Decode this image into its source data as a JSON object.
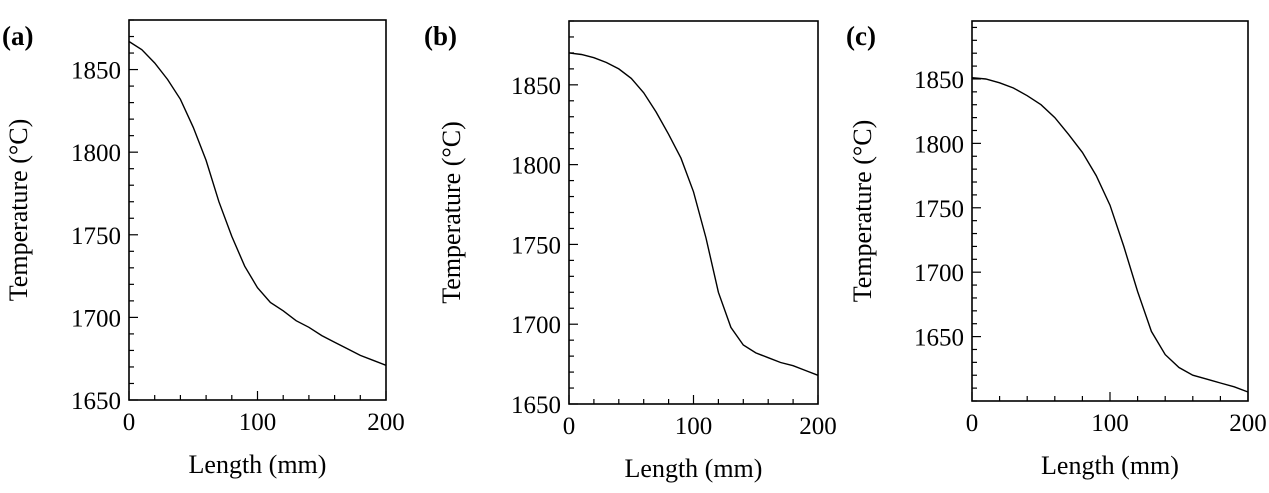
{
  "chart_data": [
    {
      "panel": "(a)",
      "type": "line",
      "xlabel": "Length (mm)",
      "ylabel": "Temperature (°C)",
      "xlim": [
        0,
        200
      ],
      "ylim": [
        1650,
        1880
      ],
      "xticks": [
        0,
        100,
        200
      ],
      "yticks": [
        1650,
        1700,
        1750,
        1800,
        1850
      ],
      "grid": false,
      "series": [
        {
          "x": [
            0,
            10,
            20,
            30,
            40,
            50,
            60,
            70,
            80,
            90,
            100,
            110,
            120,
            130,
            140,
            150,
            160,
            170,
            180,
            190,
            200
          ],
          "y": [
            1867,
            1862,
            1854,
            1844,
            1832,
            1815,
            1795,
            1770,
            1749,
            1731,
            1718,
            1709,
            1704,
            1698,
            1694,
            1689,
            1685,
            1681,
            1677,
            1674,
            1671
          ]
        }
      ]
    },
    {
      "panel": "(b)",
      "type": "line",
      "xlabel": "Length (mm)",
      "ylabel": "Temperature (°C)",
      "xlim": [
        0,
        200
      ],
      "ylim": [
        1650,
        1890
      ],
      "xticks": [
        0,
        100,
        200
      ],
      "yticks": [
        1650,
        1700,
        1750,
        1800,
        1850
      ],
      "grid": false,
      "series": [
        {
          "x": [
            0,
            10,
            20,
            30,
            40,
            50,
            60,
            70,
            80,
            90,
            100,
            110,
            120,
            130,
            140,
            150,
            160,
            170,
            180,
            190,
            200
          ],
          "y": [
            1870,
            1869,
            1867,
            1864,
            1860,
            1854,
            1845,
            1833,
            1819,
            1804,
            1783,
            1754,
            1720,
            1698,
            1687,
            1682,
            1679,
            1676,
            1674,
            1671,
            1668
          ]
        }
      ]
    },
    {
      "panel": "(c)",
      "type": "line",
      "xlabel": "Length (mm)",
      "ylabel": "Temperature (°C)",
      "xlim": [
        0,
        200
      ],
      "ylim": [
        1600,
        1895
      ],
      "xticks": [
        0,
        100,
        200
      ],
      "yticks": [
        1650,
        1700,
        1750,
        1800,
        1850
      ],
      "grid": false,
      "series": [
        {
          "x": [
            0,
            10,
            20,
            30,
            40,
            50,
            60,
            70,
            80,
            90,
            100,
            110,
            120,
            130,
            140,
            150,
            160,
            170,
            180,
            190,
            200
          ],
          "y": [
            1851,
            1850,
            1847,
            1843,
            1837,
            1830,
            1820,
            1807,
            1793,
            1775,
            1752,
            1720,
            1685,
            1654,
            1636,
            1626,
            1620,
            1617,
            1614,
            1611,
            1607
          ]
        }
      ]
    }
  ]
}
